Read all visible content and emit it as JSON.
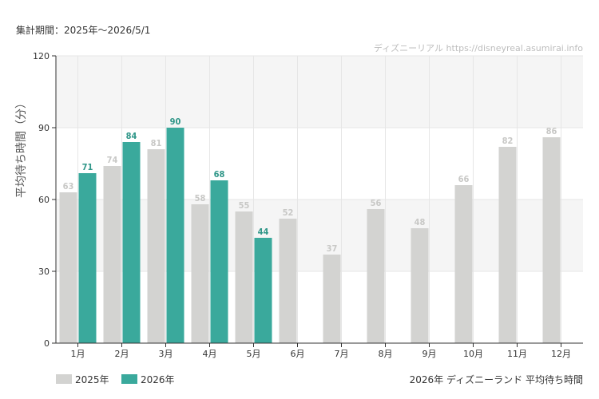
{
  "header": {
    "period": "集計期間：2025年～2026/5/1",
    "watermark": "ディズニーリアル https://disneyreal.asumirai.info"
  },
  "caption": "2026年 ディズニーランド 平均待ち時間",
  "colors": {
    "series_2025": "#d3d3d1",
    "series_2026": "#3aa99c",
    "label_2025": "#c8c8c6",
    "label_2026": "#2f9688",
    "band": "#f5f5f5",
    "grid": "#e6e6e6",
    "axis": "#333333"
  },
  "chart_data": {
    "type": "bar",
    "ylabel": "平均待ち時間（分）",
    "xlabel": "",
    "ylim": [
      0,
      120
    ],
    "yticks": [
      0,
      30,
      60,
      90,
      120
    ],
    "grid": true,
    "legend_position": "bottom-left",
    "categories": [
      "1月",
      "2月",
      "3月",
      "4月",
      "5月",
      "6月",
      "7月",
      "8月",
      "9月",
      "10月",
      "11月",
      "12月"
    ],
    "series": [
      {
        "name": "2025年",
        "values": [
          63,
          74,
          81,
          58,
          55,
          52,
          37,
          56,
          48,
          66,
          82,
          86
        ]
      },
      {
        "name": "2026年",
        "values": [
          71,
          84,
          90,
          68,
          44,
          null,
          null,
          null,
          null,
          null,
          null,
          null
        ]
      }
    ]
  }
}
